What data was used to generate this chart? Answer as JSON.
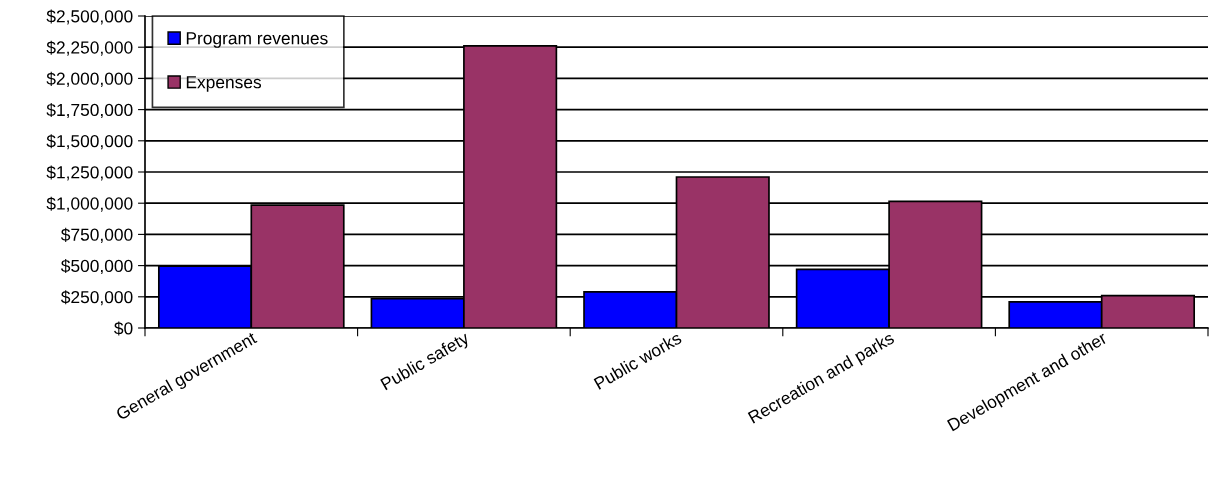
{
  "chart_data": {
    "type": "bar",
    "categories": [
      "General government",
      "Public safety",
      "Public works",
      "Recreation and parks",
      "Development and other"
    ],
    "series": [
      {
        "name": "Program revenues",
        "color": "#0000ff",
        "values": [
          495000,
          235000,
          290000,
          470000,
          210000
        ]
      },
      {
        "name": "Expenses",
        "color": "#993366",
        "values": [
          985000,
          2260000,
          1210000,
          1015000,
          260000
        ]
      }
    ],
    "ylim": [
      0,
      2500000
    ],
    "yticks": [
      {
        "value": 0,
        "label": "$0"
      },
      {
        "value": 250000,
        "label": "$250,000"
      },
      {
        "value": 500000,
        "label": "$500,000"
      },
      {
        "value": 750000,
        "label": "$750,000"
      },
      {
        "value": 1000000,
        "label": "$1,000,000"
      },
      {
        "value": 1250000,
        "label": "$1,250,000"
      },
      {
        "value": 1500000,
        "label": "$1,500,000"
      },
      {
        "value": 1750000,
        "label": "$1,750,000"
      },
      {
        "value": 2000000,
        "label": "$2,000,000"
      },
      {
        "value": 2250000,
        "label": "$2,250,000"
      },
      {
        "value": 2500000,
        "label": "$2,500,000"
      }
    ],
    "grid": "y",
    "legend": "top left"
  }
}
